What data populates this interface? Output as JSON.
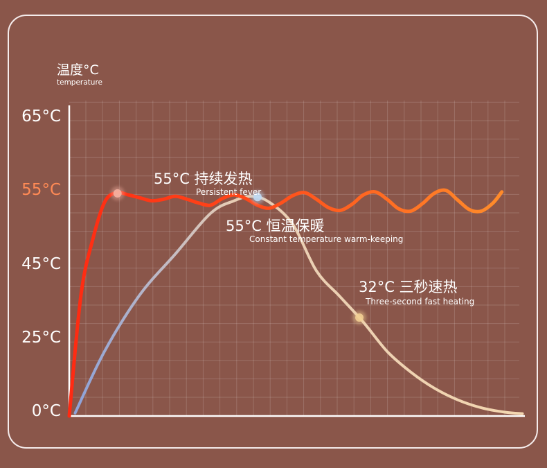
{
  "chart_data": {
    "type": "line",
    "ylabel": "温度°C",
    "ylabel_en": "temperature",
    "y_ticks": [
      {
        "label": "65°C",
        "highlight": false
      },
      {
        "label": "55°C",
        "highlight": true
      },
      {
        "label": "45°C",
        "highlight": false
      },
      {
        "label": "25°C",
        "highlight": false
      },
      {
        "label": "0°C",
        "highlight": false
      }
    ],
    "grid": true,
    "series": [
      {
        "id": "persistent",
        "colors": [
          "#ff2a12",
          "#ff8a2a"
        ],
        "points": [
          [
            0,
            0
          ],
          [
            2,
            38
          ],
          [
            4,
            49
          ],
          [
            6,
            54
          ],
          [
            8,
            55.3
          ],
          [
            10,
            55
          ],
          [
            12,
            54.6
          ],
          [
            14,
            54.2
          ],
          [
            16,
            54.4
          ],
          [
            18,
            54.8
          ],
          [
            20,
            54.4
          ],
          [
            22,
            53.9
          ],
          [
            24,
            53.6
          ],
          [
            26,
            54.5
          ],
          [
            28,
            55
          ],
          [
            30,
            54.5
          ],
          [
            32,
            53.6
          ],
          [
            34,
            53.2
          ],
          [
            36,
            53.9
          ],
          [
            38,
            54.9
          ],
          [
            40,
            55.3
          ],
          [
            42,
            54.4
          ],
          [
            44,
            53.3
          ],
          [
            46,
            52.9
          ],
          [
            48,
            53.7
          ],
          [
            50,
            55
          ],
          [
            52,
            55.4
          ],
          [
            54,
            54.4
          ],
          [
            56,
            53.1
          ],
          [
            58,
            52.8
          ],
          [
            60,
            53.8
          ],
          [
            62,
            55.2
          ],
          [
            64,
            55.6
          ],
          [
            66,
            54.3
          ],
          [
            68,
            53
          ],
          [
            70,
            52.8
          ],
          [
            72,
            53.9
          ],
          [
            73.5,
            55.4
          ]
        ]
      },
      {
        "id": "constant",
        "colors": [
          "#8fa3d8",
          "#f3d6b0"
        ],
        "points": [
          [
            1,
            1
          ],
          [
            6,
            22
          ],
          [
            12,
            38
          ],
          [
            18,
            47
          ],
          [
            24,
            52.5
          ],
          [
            28,
            54.2
          ],
          [
            31,
            54.8
          ],
          [
            34,
            54
          ],
          [
            38,
            51
          ],
          [
            42,
            44.5
          ],
          [
            46,
            37.5
          ],
          [
            50,
            30.5
          ],
          [
            54,
            22
          ],
          [
            58,
            15
          ],
          [
            62,
            9.5
          ],
          [
            66,
            5.5
          ],
          [
            70,
            2.8
          ],
          [
            74,
            1.3
          ],
          [
            77,
            0.8
          ]
        ]
      }
    ],
    "markers": [
      {
        "label": "55°C 持续发热",
        "sub": "Persistent fever",
        "x": 8.2,
        "y": 55.2,
        "color": "#f4b2a2"
      },
      {
        "label": "55°C 恒温保暖",
        "sub": "Constant temperature warm-keeping",
        "x": 32,
        "y": 54.7,
        "color": "#bfd9f4"
      },
      {
        "label": "32°C 三秒速热",
        "sub": "Three-second fast heating",
        "x": 49.3,
        "y": 31.8,
        "color": "#f2cf94"
      }
    ]
  }
}
